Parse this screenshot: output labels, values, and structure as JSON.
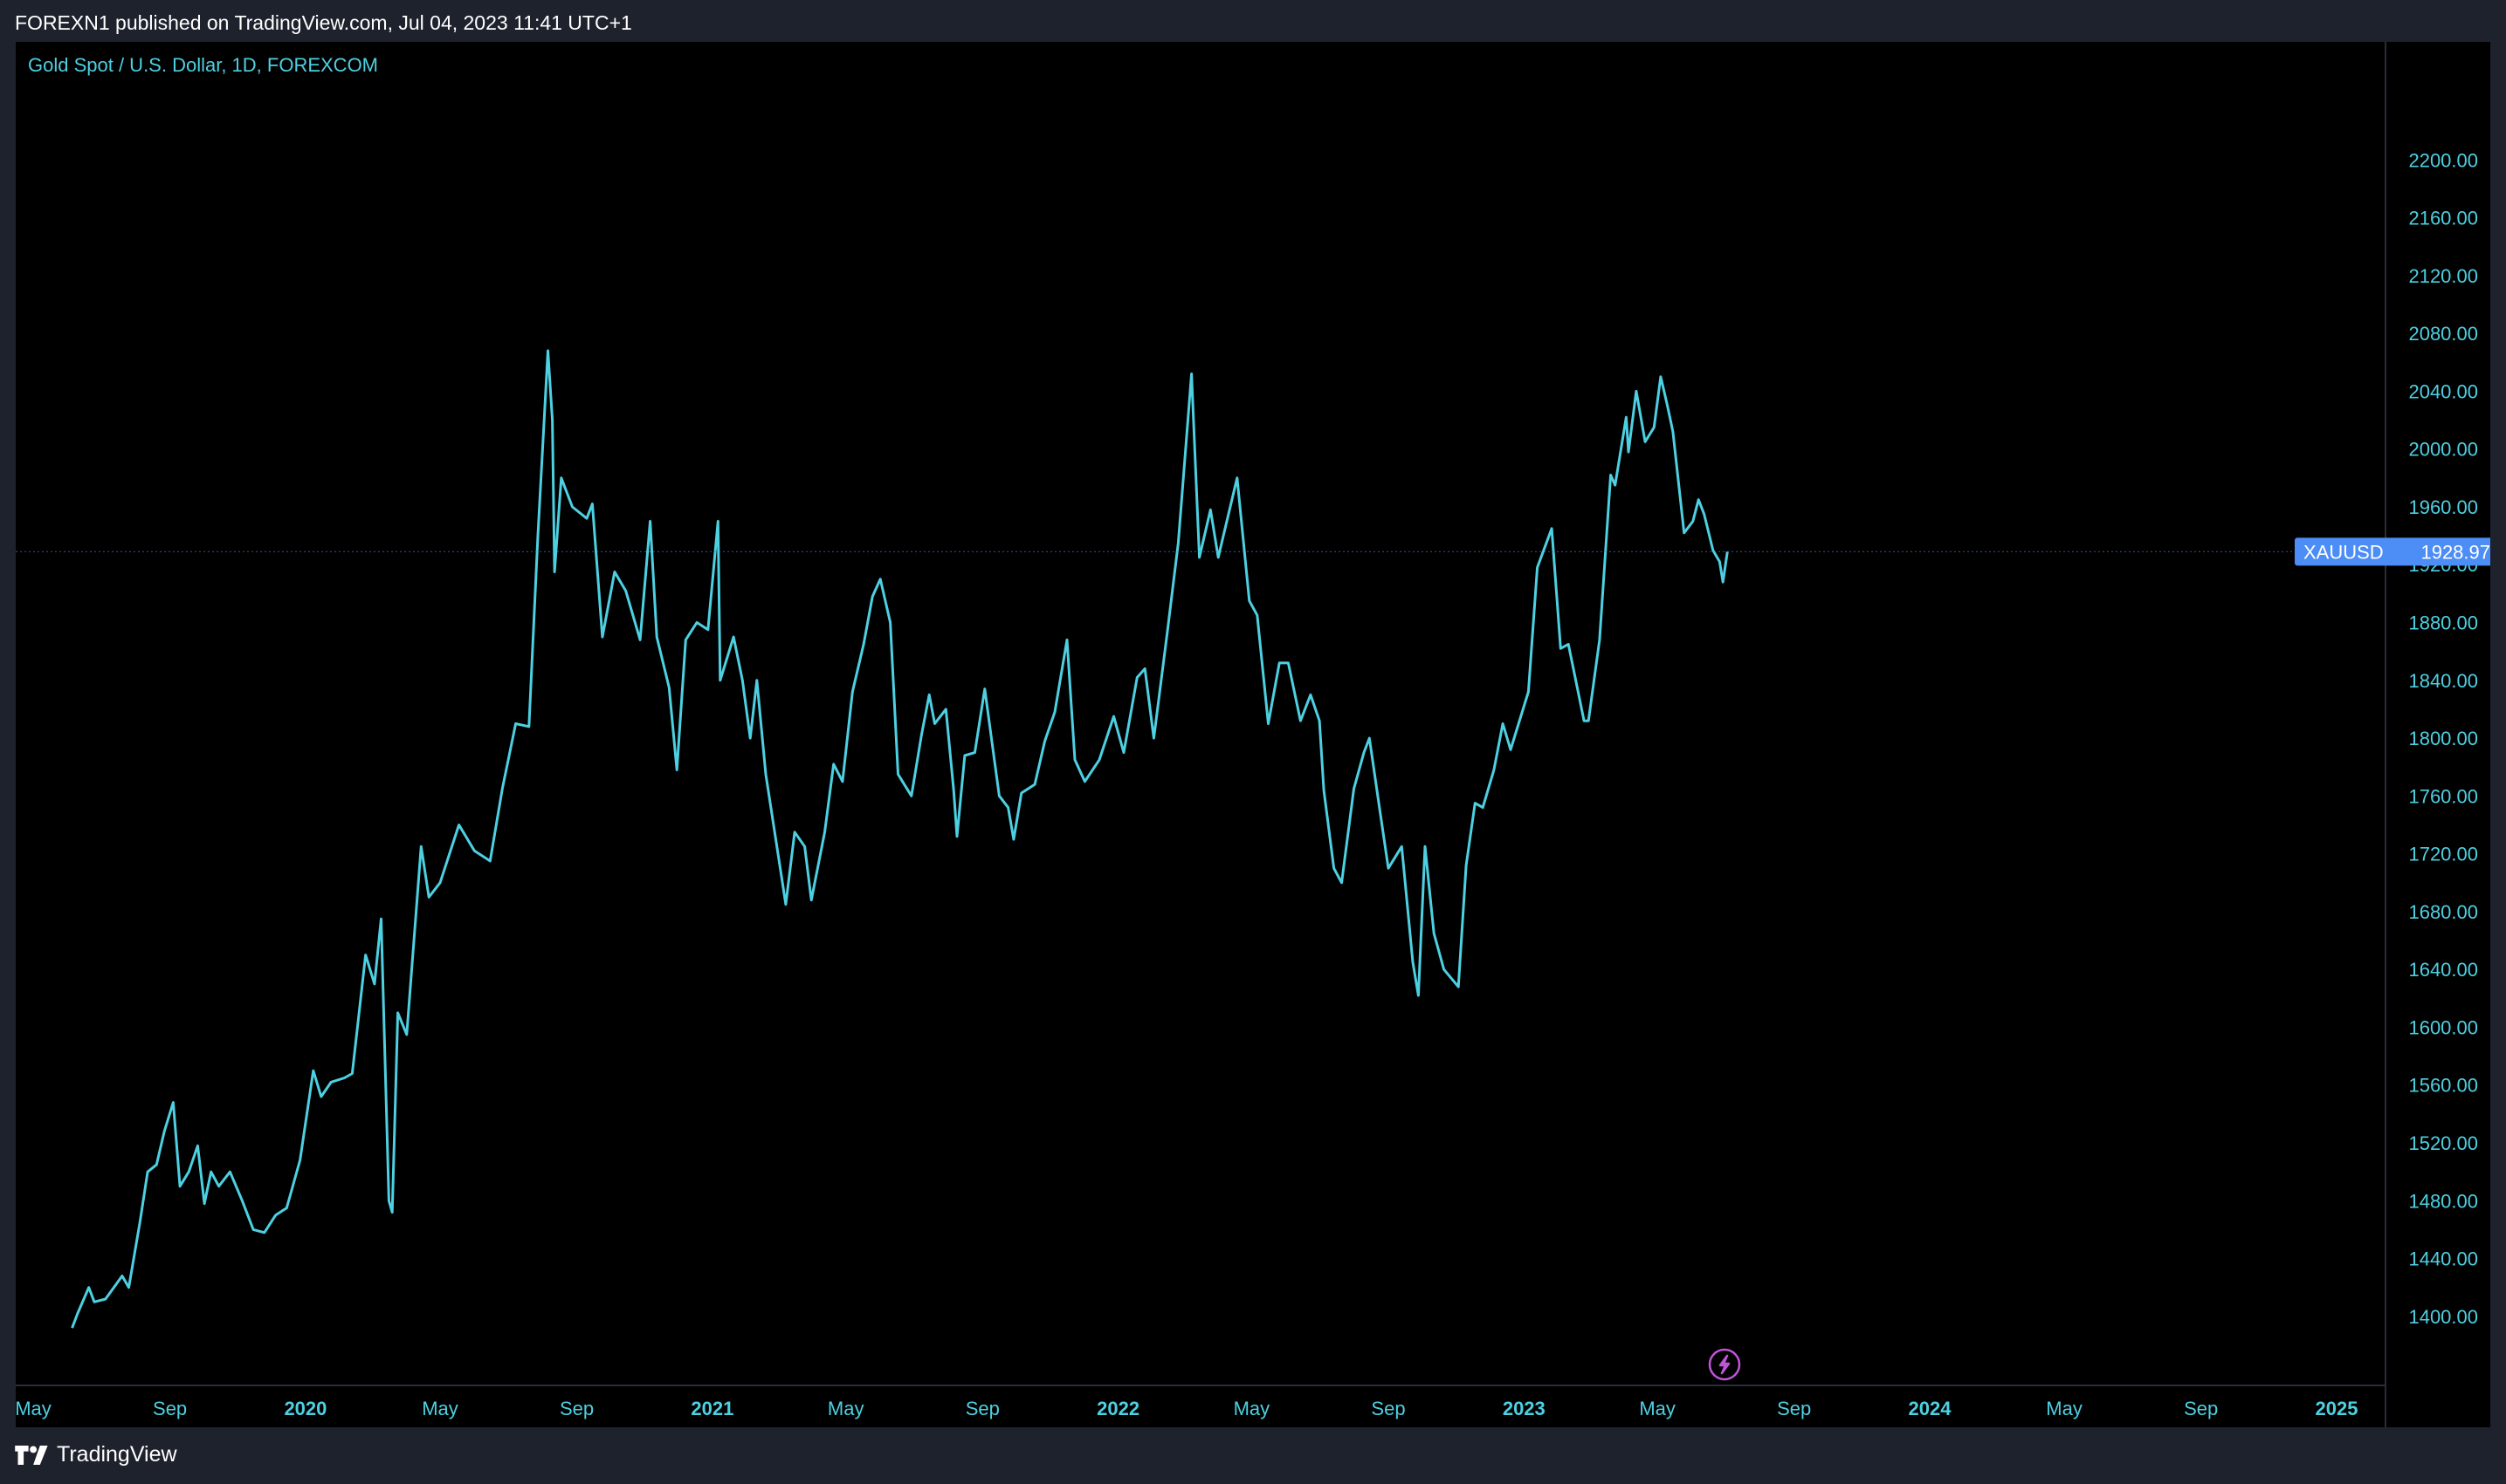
{
  "header": {
    "published_text": "FOREXN1 published on TradingView.com, Jul 04, 2023 11:41 UTC+1"
  },
  "footer": {
    "brand": "TradingView"
  },
  "colors": {
    "line": "#4dd0e1",
    "axis_text": "#4dd0e1",
    "price_label_bg": "#4c8df6",
    "price_label_text": "#ffffff",
    "alert_icon": "#c055d8",
    "background": "#000000"
  },
  "chart_data": {
    "type": "line",
    "title": "Gold Spot / U.S. Dollar, 1D, FOREXCOM",
    "symbol": "XAUUSD",
    "last_price": "1928.97",
    "last_value": 1928.97,
    "ylim": [
      1380,
      2240
    ],
    "y_ticks": [
      "2200.00",
      "2160.00",
      "2120.00",
      "2080.00",
      "2040.00",
      "2000.00",
      "1960.00",
      "1920.00",
      "1880.00",
      "1840.00",
      "1800.00",
      "1760.00",
      "1720.00",
      "1680.00",
      "1640.00",
      "1600.00",
      "1560.00",
      "1520.00",
      "1480.00",
      "1440.00",
      "1400.00"
    ],
    "x_axis_range": [
      "2019-05-01",
      "2025-01-01"
    ],
    "x_ticks": [
      {
        "label": "May",
        "date": "2019-05-01",
        "bold": false
      },
      {
        "label": "Sep",
        "date": "2019-09-01",
        "bold": false
      },
      {
        "label": "2020",
        "date": "2020-01-01",
        "bold": true
      },
      {
        "label": "May",
        "date": "2020-05-01",
        "bold": false
      },
      {
        "label": "Sep",
        "date": "2020-09-01",
        "bold": false
      },
      {
        "label": "2021",
        "date": "2021-01-01",
        "bold": true
      },
      {
        "label": "May",
        "date": "2021-05-01",
        "bold": false
      },
      {
        "label": "Sep",
        "date": "2021-09-01",
        "bold": false
      },
      {
        "label": "2022",
        "date": "2022-01-01",
        "bold": true
      },
      {
        "label": "May",
        "date": "2022-05-01",
        "bold": false
      },
      {
        "label": "Sep",
        "date": "2022-09-01",
        "bold": false
      },
      {
        "label": "2023",
        "date": "2023-01-01",
        "bold": true
      },
      {
        "label": "May",
        "date": "2023-05-01",
        "bold": false
      },
      {
        "label": "Sep",
        "date": "2023-09-01",
        "bold": false
      },
      {
        "label": "2024",
        "date": "2024-01-01",
        "bold": true
      },
      {
        "label": "May",
        "date": "2024-05-01",
        "bold": false
      },
      {
        "label": "Sep",
        "date": "2024-09-01",
        "bold": false
      },
      {
        "label": "2025",
        "date": "2025-01-01",
        "bold": true
      }
    ],
    "points": [
      [
        "2019-06-05",
        1392
      ],
      [
        "2019-06-10",
        1402
      ],
      [
        "2019-06-20",
        1420
      ],
      [
        "2019-06-25",
        1410
      ],
      [
        "2019-07-05",
        1412
      ],
      [
        "2019-07-20",
        1428
      ],
      [
        "2019-07-26",
        1420
      ],
      [
        "2019-08-05",
        1465
      ],
      [
        "2019-08-12",
        1500
      ],
      [
        "2019-08-20",
        1505
      ],
      [
        "2019-08-27",
        1528
      ],
      [
        "2019-09-04",
        1548
      ],
      [
        "2019-09-10",
        1490
      ],
      [
        "2019-09-18",
        1500
      ],
      [
        "2019-09-26",
        1518
      ],
      [
        "2019-10-02",
        1478
      ],
      [
        "2019-10-08",
        1500
      ],
      [
        "2019-10-15",
        1490
      ],
      [
        "2019-10-25",
        1500
      ],
      [
        "2019-11-05",
        1480
      ],
      [
        "2019-11-15",
        1460
      ],
      [
        "2019-11-25",
        1458
      ],
      [
        "2019-12-05",
        1470
      ],
      [
        "2019-12-15",
        1475
      ],
      [
        "2019-12-27",
        1508
      ],
      [
        "2020-01-08",
        1570
      ],
      [
        "2020-01-15",
        1552
      ],
      [
        "2020-01-24",
        1562
      ],
      [
        "2020-02-05",
        1565
      ],
      [
        "2020-02-12",
        1568
      ],
      [
        "2020-02-24",
        1650
      ],
      [
        "2020-03-03",
        1630
      ],
      [
        "2020-03-09",
        1675
      ],
      [
        "2020-03-16",
        1480
      ],
      [
        "2020-03-19",
        1472
      ],
      [
        "2020-03-24",
        1610
      ],
      [
        "2020-04-01",
        1595
      ],
      [
        "2020-04-14",
        1725
      ],
      [
        "2020-04-21",
        1690
      ],
      [
        "2020-05-01",
        1700
      ],
      [
        "2020-05-18",
        1740
      ],
      [
        "2020-06-01",
        1722
      ],
      [
        "2020-06-15",
        1715
      ],
      [
        "2020-06-26",
        1765
      ],
      [
        "2020-07-08",
        1810
      ],
      [
        "2020-07-20",
        1808
      ],
      [
        "2020-07-28",
        1940
      ],
      [
        "2020-08-06",
        2068
      ],
      [
        "2020-08-10",
        2020
      ],
      [
        "2020-08-12",
        1915
      ],
      [
        "2020-08-18",
        1980
      ],
      [
        "2020-08-28",
        1960
      ],
      [
        "2020-09-10",
        1952
      ],
      [
        "2020-09-15",
        1962
      ],
      [
        "2020-09-24",
        1870
      ],
      [
        "2020-10-05",
        1915
      ],
      [
        "2020-10-15",
        1902
      ],
      [
        "2020-10-28",
        1868
      ],
      [
        "2020-11-06",
        1950
      ],
      [
        "2020-11-12",
        1870
      ],
      [
        "2020-11-23",
        1835
      ],
      [
        "2020-11-30",
        1778
      ],
      [
        "2020-12-08",
        1868
      ],
      [
        "2020-12-18",
        1880
      ],
      [
        "2020-12-28",
        1875
      ],
      [
        "2021-01-06",
        1950
      ],
      [
        "2021-01-08",
        1840
      ],
      [
        "2021-01-20",
        1870
      ],
      [
        "2021-01-28",
        1840
      ],
      [
        "2021-02-04",
        1800
      ],
      [
        "2021-02-10",
        1840
      ],
      [
        "2021-02-18",
        1775
      ],
      [
        "2021-02-26",
        1735
      ],
      [
        "2021-03-08",
        1685
      ],
      [
        "2021-03-16",
        1735
      ],
      [
        "2021-03-25",
        1725
      ],
      [
        "2021-03-31",
        1688
      ],
      [
        "2021-04-12",
        1735
      ],
      [
        "2021-04-20",
        1782
      ],
      [
        "2021-04-28",
        1770
      ],
      [
        "2021-05-07",
        1832
      ],
      [
        "2021-05-17",
        1865
      ],
      [
        "2021-05-25",
        1898
      ],
      [
        "2021-06-01",
        1910
      ],
      [
        "2021-06-10",
        1880
      ],
      [
        "2021-06-17",
        1775
      ],
      [
        "2021-06-29",
        1760
      ],
      [
        "2021-07-08",
        1802
      ],
      [
        "2021-07-15",
        1830
      ],
      [
        "2021-07-20",
        1810
      ],
      [
        "2021-07-30",
        1820
      ],
      [
        "2021-08-06",
        1764
      ],
      [
        "2021-08-09",
        1732
      ],
      [
        "2021-08-16",
        1788
      ],
      [
        "2021-08-25",
        1790
      ],
      [
        "2021-09-03",
        1834
      ],
      [
        "2021-09-16",
        1760
      ],
      [
        "2021-09-24",
        1752
      ],
      [
        "2021-09-29",
        1730
      ],
      [
        "2021-10-06",
        1762
      ],
      [
        "2021-10-18",
        1768
      ],
      [
        "2021-10-27",
        1798
      ],
      [
        "2021-11-05",
        1818
      ],
      [
        "2021-11-16",
        1868
      ],
      [
        "2021-11-23",
        1785
      ],
      [
        "2021-12-02",
        1770
      ],
      [
        "2021-12-15",
        1785
      ],
      [
        "2021-12-28",
        1815
      ],
      [
        "2022-01-06",
        1790
      ],
      [
        "2022-01-18",
        1842
      ],
      [
        "2022-01-25",
        1848
      ],
      [
        "2022-02-02",
        1800
      ],
      [
        "2022-02-14",
        1872
      ],
      [
        "2022-02-24",
        1935
      ],
      [
        "2022-03-08",
        2052
      ],
      [
        "2022-03-15",
        1925
      ],
      [
        "2022-03-25",
        1958
      ],
      [
        "2022-04-01",
        1925
      ],
      [
        "2022-04-18",
        1980
      ],
      [
        "2022-04-29",
        1895
      ],
      [
        "2022-05-06",
        1885
      ],
      [
        "2022-05-16",
        1810
      ],
      [
        "2022-05-26",
        1852
      ],
      [
        "2022-06-03",
        1852
      ],
      [
        "2022-06-14",
        1812
      ],
      [
        "2022-06-23",
        1830
      ],
      [
        "2022-07-01",
        1812
      ],
      [
        "2022-07-05",
        1764
      ],
      [
        "2022-07-14",
        1710
      ],
      [
        "2022-07-21",
        1700
      ],
      [
        "2022-08-01",
        1765
      ],
      [
        "2022-08-10",
        1790
      ],
      [
        "2022-08-15",
        1800
      ],
      [
        "2022-08-24",
        1752
      ],
      [
        "2022-09-01",
        1710
      ],
      [
        "2022-09-13",
        1725
      ],
      [
        "2022-09-23",
        1645
      ],
      [
        "2022-09-28",
        1622
      ],
      [
        "2022-10-04",
        1725
      ],
      [
        "2022-10-12",
        1665
      ],
      [
        "2022-10-21",
        1640
      ],
      [
        "2022-11-03",
        1628
      ],
      [
        "2022-11-10",
        1712
      ],
      [
        "2022-11-18",
        1755
      ],
      [
        "2022-11-25",
        1752
      ],
      [
        "2022-12-05",
        1778
      ],
      [
        "2022-12-13",
        1810
      ],
      [
        "2022-12-20",
        1792
      ],
      [
        "2023-01-05",
        1832
      ],
      [
        "2023-01-13",
        1918
      ],
      [
        "2023-01-26",
        1945
      ],
      [
        "2023-02-03",
        1862
      ],
      [
        "2023-02-10",
        1865
      ],
      [
        "2023-02-24",
        1812
      ],
      [
        "2023-02-28",
        1812
      ],
      [
        "2023-03-10",
        1868
      ],
      [
        "2023-03-20",
        1982
      ],
      [
        "2023-03-24",
        1975
      ],
      [
        "2023-04-03",
        2022
      ],
      [
        "2023-04-05",
        1998
      ],
      [
        "2023-04-12",
        2040
      ],
      [
        "2023-04-20",
        2005
      ],
      [
        "2023-04-28",
        2015
      ],
      [
        "2023-05-04",
        2050
      ],
      [
        "2023-05-10",
        2030
      ],
      [
        "2023-05-15",
        2012
      ],
      [
        "2023-05-25",
        1942
      ],
      [
        "2023-06-02",
        1950
      ],
      [
        "2023-06-07",
        1965
      ],
      [
        "2023-06-12",
        1955
      ],
      [
        "2023-06-20",
        1930
      ],
      [
        "2023-06-26",
        1922
      ],
      [
        "2023-06-29",
        1908
      ],
      [
        "2023-07-03",
        1928.97
      ]
    ]
  }
}
